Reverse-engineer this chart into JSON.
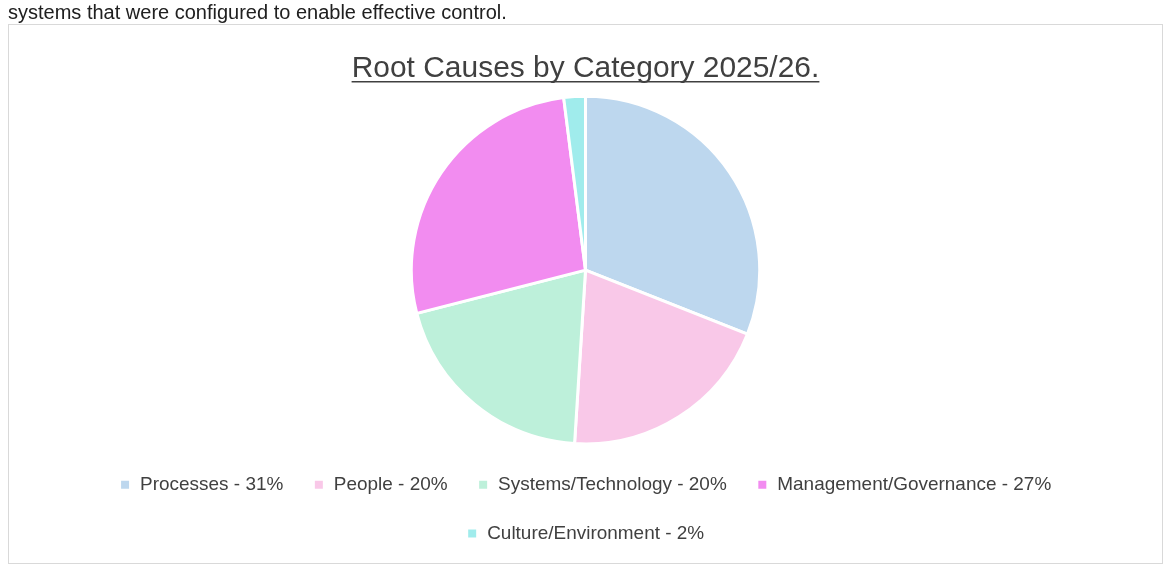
{
  "chart_data": {
    "type": "pie",
    "title": "Root Causes by Category 2025/26.",
    "annotations": [
      "systems that were configured to enable effective control."
    ],
    "categories": [
      "Processes - 31%",
      "People - 20%",
      "Systems/Technology - 20%",
      "Management/Governance - 27%",
      "Culture/Environment - 2%"
    ],
    "values": [
      31,
      20,
      20,
      27,
      2
    ],
    "colors": [
      "#bdd7ee",
      "#f9c8e8",
      "#bdf0da",
      "#f28cf0",
      "#a0ecec"
    ],
    "legend": "bottom"
  }
}
